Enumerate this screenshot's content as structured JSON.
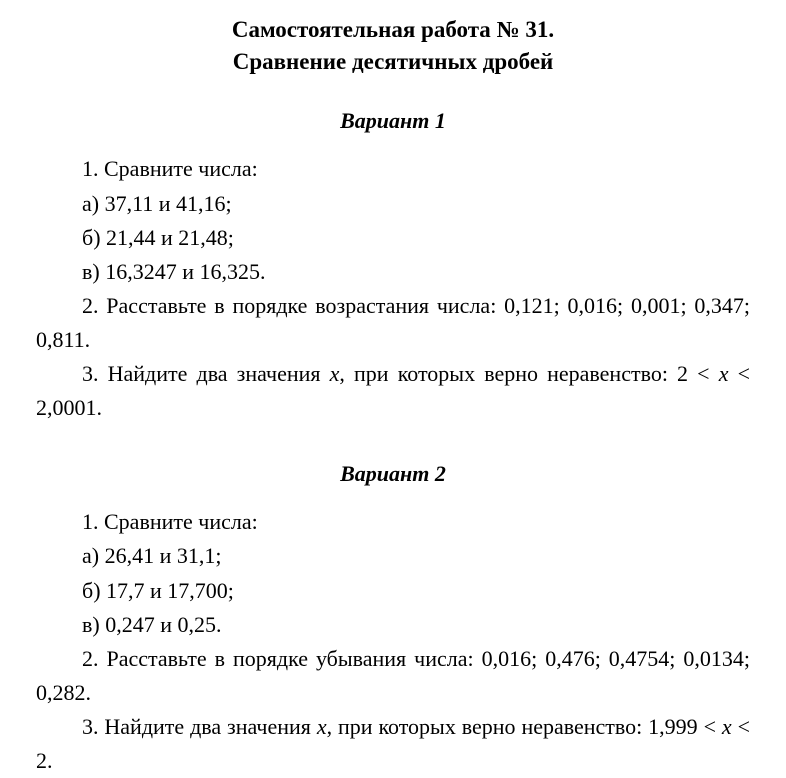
{
  "title_line1": "Самостоятельная работа № 31.",
  "title_line2": "Сравнение десятичных дробей",
  "variant1": {
    "heading": "Вариант 1",
    "q1_stem": "1. Сравните числа:",
    "q1_a": "а) 37,11 и 41,16;",
    "q1_b": "б) 21,44 и 21,48;",
    "q1_c": "в) 16,3247 и 16,325.",
    "q2": "2. Расставьте в порядке возрастания числа: 0,121; 0,016; 0,001; 0,347; 0,811.",
    "q3_pre": "3. Найдите два значения ",
    "q3_x": "x",
    "q3_mid": ", при которых верно неравенство: 2 < ",
    "q3_x2": "x",
    "q3_post": " < 2,0001."
  },
  "variant2": {
    "heading": "Вариант 2",
    "q1_stem": "1. Сравните числа:",
    "q1_a": "а) 26,41 и 31,1;",
    "q1_b": "б) 17,7 и 17,700;",
    "q1_c": "в) 0,247 и 0,25.",
    "q2": "2. Расставьте в порядке убывания числа: 0,016; 0,476; 0,4754; 0,0134; 0,282.",
    "q3_pre": "3. Найдите два значения ",
    "q3_x": "x",
    "q3_mid": ", при которых верно неравенство: 1,999 < ",
    "q3_x2": "x",
    "q3_post": " < 2."
  }
}
